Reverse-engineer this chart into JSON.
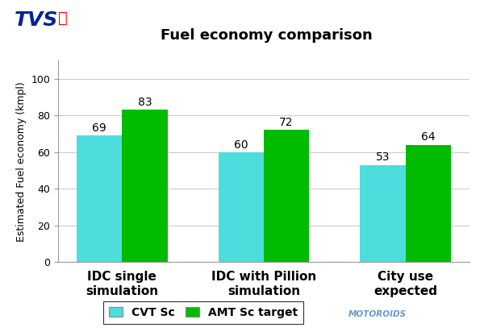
{
  "title": "Fuel economy comparison",
  "ylabel": "Estimated Fuel economy (kmpl)",
  "categories": [
    "IDC single\nsimulation",
    "IDC with Pillion\nsimulation",
    "City use\nexpected"
  ],
  "cvt_values": [
    69,
    60,
    53
  ],
  "amt_values": [
    83,
    72,
    64
  ],
  "cvt_color": "#4DDDDD",
  "amt_color": "#00BB00",
  "ylim": [
    0,
    110
  ],
  "yticks": [
    0,
    20,
    40,
    60,
    80,
    100
  ],
  "bar_width": 0.32,
  "legend_cvt": "CVT Sc",
  "legend_amt": "AMT Sc target",
  "title_fontsize": 13,
  "ylabel_fontsize": 9,
  "tick_fontsize": 9,
  "value_fontsize": 10,
  "xtick_fontsize": 11,
  "bg_color": "#FFFFFF",
  "tvs_color": "#002299",
  "motoroids_color": "#6699CC",
  "grid_color": "#CCCCCC"
}
